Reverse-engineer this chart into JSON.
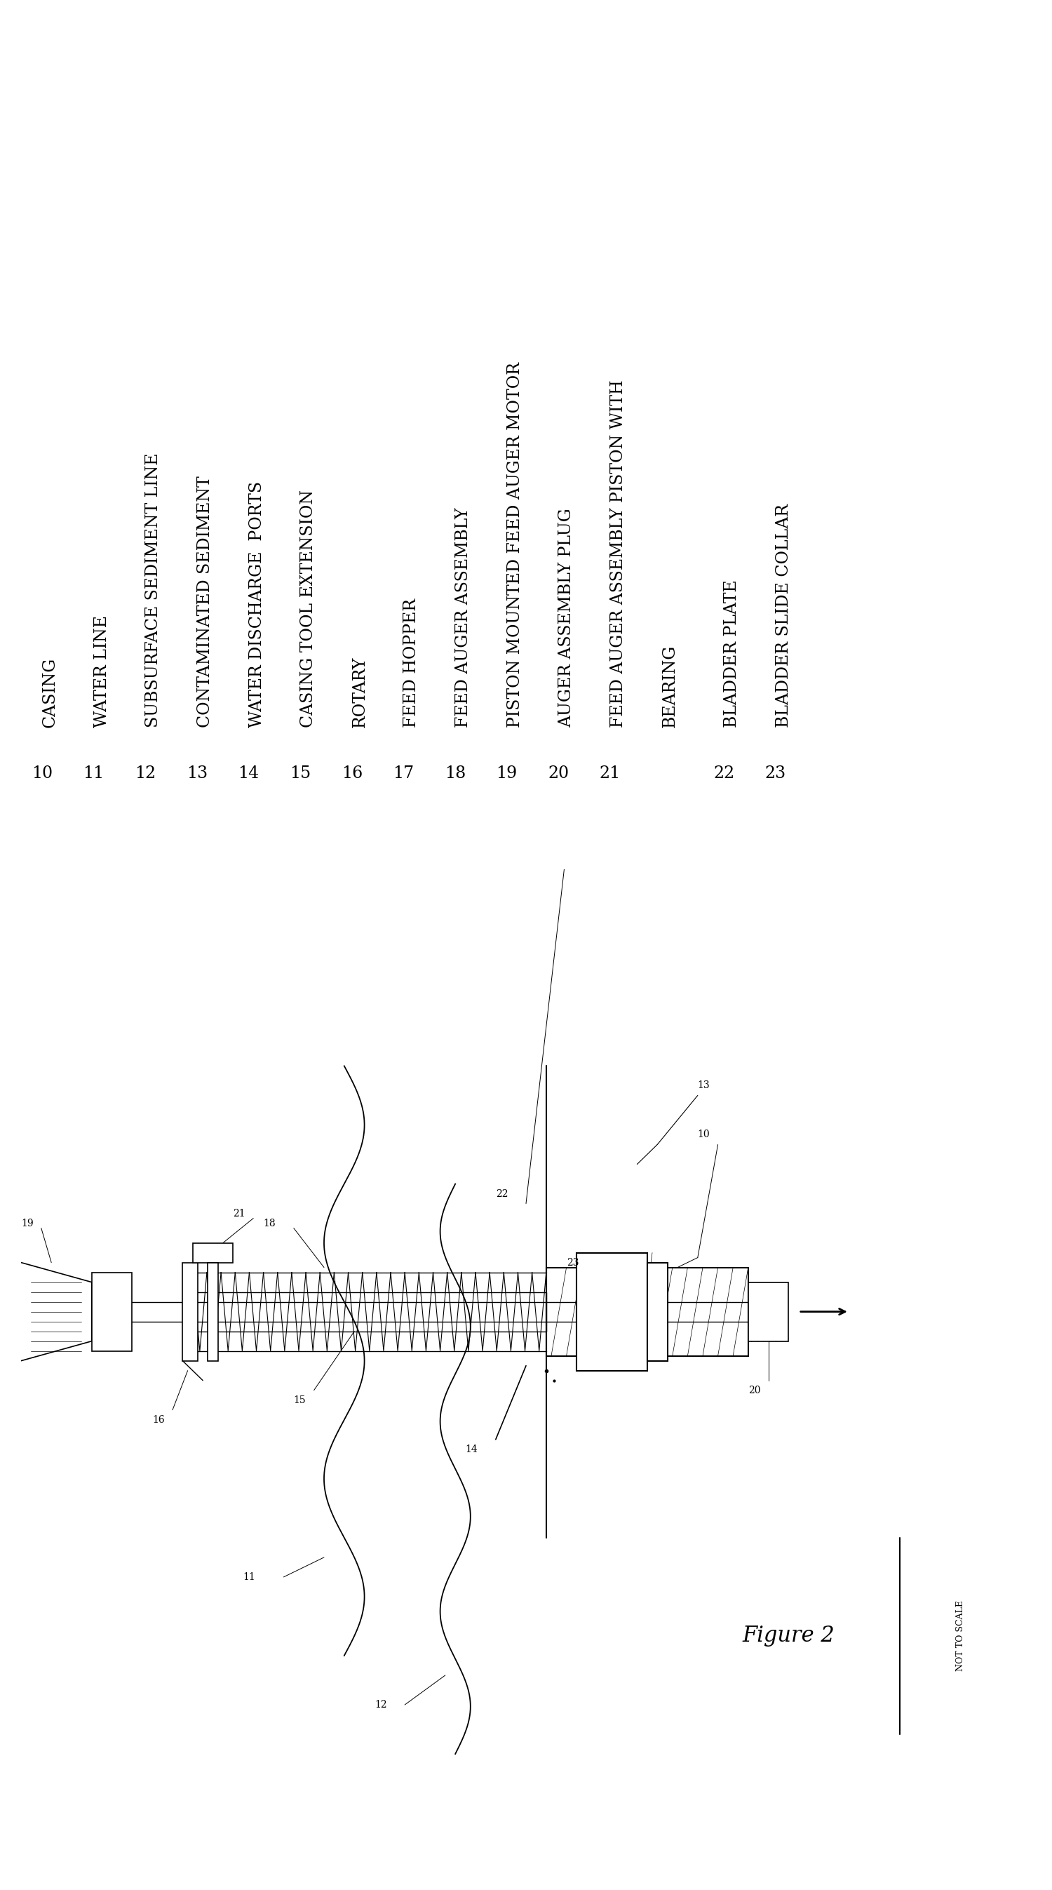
{
  "bg_color": "#ffffff",
  "legend_items": [
    {
      "num": "10",
      "text": "CASING"
    },
    {
      "num": "11",
      "text": "WATER LINE"
    },
    {
      "num": "12",
      "text": "SUBSURFACE SEDIMENT LINE"
    },
    {
      "num": "13",
      "text": "CONTAMINATED SEDIMENT"
    },
    {
      "num": "14",
      "text": "WATER DISCHARGE  PORTS"
    },
    {
      "num": "15",
      "text": "CASING TOOL EXTENSION"
    },
    {
      "num": "16",
      "text": "ROTARY"
    },
    {
      "num": "17",
      "text": "FEED HOPPER"
    },
    {
      "num": "18",
      "text": "FEED AUGER ASSEMBLY"
    },
    {
      "num": "19",
      "text": "PISTON MOUNTED FEED AUGER MOTOR"
    },
    {
      "num": "20",
      "text": "AUGER ASSEMBLY PLUG"
    },
    {
      "num": "21",
      "text": "FEED AUGER ASSEMBLY PISTON WITH"
    },
    {
      "num": "",
      "text": "BEARING"
    },
    {
      "num": "22",
      "text": "BLADDER PLATE"
    },
    {
      "num": "23",
      "text": "BLADDER SLIDE COLLAR"
    }
  ],
  "figure_label": "Figure 2",
  "not_to_scale": "NOT TO SCALE",
  "font_size_legend": 17,
  "font_size_num": 17
}
